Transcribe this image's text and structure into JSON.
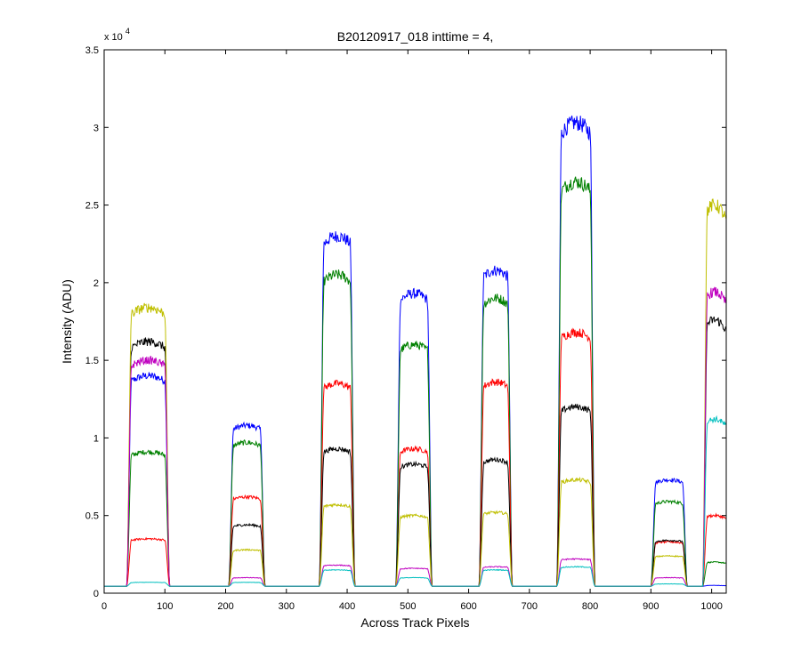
{
  "chart_data": {
    "type": "line",
    "title": "B20120917_018 inttime = 4,",
    "xlabel": "Across Track Pixels",
    "ylabel": "Intensity (ADU)",
    "exponent_label": "x 10",
    "exponent_power": "4",
    "xlim": [
      0,
      1024
    ],
    "ylim": [
      0,
      35000
    ],
    "xticks": [
      0,
      100,
      200,
      300,
      400,
      500,
      600,
      700,
      800,
      900,
      1000
    ],
    "xtick_labels": [
      "0",
      "100",
      "200",
      "300",
      "400",
      "500",
      "600",
      "700",
      "800",
      "900",
      "1000"
    ],
    "yticks": [
      0,
      5000,
      10000,
      15000,
      20000,
      25000,
      30000,
      35000
    ],
    "ytick_labels": [
      "0",
      "0.5",
      "1",
      "1.5",
      "2",
      "2.5",
      "3",
      "3.5"
    ],
    "grid": false,
    "background": 450,
    "segments": [
      {
        "start": 37,
        "end": 108
      },
      {
        "start": 205,
        "end": 265
      },
      {
        "start": 354,
        "end": 413
      },
      {
        "start": 480,
        "end": 540
      },
      {
        "start": 617,
        "end": 672
      },
      {
        "start": 745,
        "end": 808
      },
      {
        "start": 900,
        "end": 960
      },
      {
        "start": 985,
        "end": 1024
      }
    ],
    "series": [
      {
        "color": "#0000ff",
        "levels": [
          14000,
          10800,
          23000,
          19300,
          20800,
          30300,
          7300,
          500
        ]
      },
      {
        "color": "#008000",
        "levels": [
          9100,
          9700,
          20500,
          16000,
          19000,
          26500,
          5900,
          2000
        ]
      },
      {
        "color": "#ff0000",
        "levels": [
          3500,
          6200,
          13500,
          9300,
          13600,
          16800,
          3300,
          5000
        ]
      },
      {
        "color": "#000000",
        "levels": [
          16200,
          4400,
          9300,
          8300,
          8600,
          12000,
          3400,
          17600
        ]
      },
      {
        "color": "#bfbf00",
        "levels": [
          18400,
          2800,
          5700,
          5000,
          5200,
          7300,
          2400,
          25000
        ]
      },
      {
        "color": "#bf00bf",
        "levels": [
          15000,
          1000,
          1800,
          1600,
          1700,
          2200,
          1000,
          19400
        ]
      },
      {
        "color": "#00bfbf",
        "levels": [
          700,
          700,
          1500,
          1000,
          1500,
          1700,
          600,
          11200
        ]
      }
    ]
  }
}
